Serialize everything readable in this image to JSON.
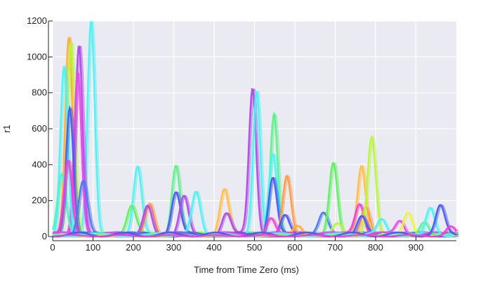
{
  "chart_data": {
    "type": "line",
    "title": "",
    "xlabel": "Time from Time Zero (ms)",
    "ylabel": "r1",
    "xlim": [
      0,
      1000
    ],
    "ylim": [
      0,
      1200
    ],
    "xticks": [
      0,
      100,
      200,
      300,
      400,
      500,
      600,
      700,
      800,
      900
    ],
    "yticks": [
      0,
      200,
      400,
      600,
      800,
      1000,
      1200
    ],
    "grid": true,
    "background": "#eaeaf2",
    "grid_color": "#ffffff",
    "baseline_noise": 25,
    "peaks": [
      {
        "x": 95,
        "y": 1200,
        "color": "#4ff2f2"
      },
      {
        "x": 40,
        "y": 1100,
        "color": "#ffae3a"
      },
      {
        "x": 45,
        "y": 1080,
        "color": "#b9f542"
      },
      {
        "x": 65,
        "y": 1060,
        "color": "#b04ae8"
      },
      {
        "x": 62,
        "y": 900,
        "color": "#e84ae8"
      },
      {
        "x": 28,
        "y": 940,
        "color": "#4ff2f2"
      },
      {
        "x": 22,
        "y": 330,
        "color": "#4ff2c8"
      },
      {
        "x": 42,
        "y": 710,
        "color": "#4a5af2"
      },
      {
        "x": 38,
        "y": 420,
        "color": "#f23fd6"
      },
      {
        "x": 75,
        "y": 300,
        "color": "#4a7af2"
      },
      {
        "x": 210,
        "y": 370,
        "color": "#4ff2f2"
      },
      {
        "x": 195,
        "y": 150,
        "color": "#5ef25e"
      },
      {
        "x": 240,
        "y": 180,
        "color": "#ff9a4a"
      },
      {
        "x": 235,
        "y": 170,
        "color": "#b04ae8"
      },
      {
        "x": 305,
        "y": 390,
        "color": "#5ef28a"
      },
      {
        "x": 305,
        "y": 240,
        "color": "#4a5af2"
      },
      {
        "x": 325,
        "y": 220,
        "color": "#b04ae8"
      },
      {
        "x": 355,
        "y": 240,
        "color": "#4ff2f2"
      },
      {
        "x": 425,
        "y": 260,
        "color": "#ffbe4a"
      },
      {
        "x": 430,
        "y": 120,
        "color": "#b04ae8"
      },
      {
        "x": 495,
        "y": 810,
        "color": "#b04ae8"
      },
      {
        "x": 505,
        "y": 810,
        "color": "#4ff2f2"
      },
      {
        "x": 548,
        "y": 670,
        "color": "#5ef28a"
      },
      {
        "x": 545,
        "y": 450,
        "color": "#4ff2f2"
      },
      {
        "x": 545,
        "y": 320,
        "color": "#4a5af2"
      },
      {
        "x": 580,
        "y": 330,
        "color": "#ff9a4a"
      },
      {
        "x": 575,
        "y": 110,
        "color": "#4a5af2"
      },
      {
        "x": 540,
        "y": 100,
        "color": "#f23fd6"
      },
      {
        "x": 605,
        "y": 60,
        "color": "#ffae3a"
      },
      {
        "x": 670,
        "y": 110,
        "color": "#4a7af2"
      },
      {
        "x": 695,
        "y": 400,
        "color": "#5ef25e"
      },
      {
        "x": 705,
        "y": 60,
        "color": "#b9f542"
      },
      {
        "x": 765,
        "y": 390,
        "color": "#ffbe4a"
      },
      {
        "x": 760,
        "y": 170,
        "color": "#f23fd6"
      },
      {
        "x": 775,
        "y": 160,
        "color": "#ff9a4a"
      },
      {
        "x": 790,
        "y": 550,
        "color": "#b9f542"
      },
      {
        "x": 765,
        "y": 100,
        "color": "#4a5af2"
      },
      {
        "x": 815,
        "y": 80,
        "color": "#4ff2f2"
      },
      {
        "x": 860,
        "y": 80,
        "color": "#e84ae8"
      },
      {
        "x": 880,
        "y": 130,
        "color": "#eef24a"
      },
      {
        "x": 920,
        "y": 80,
        "color": "#5ef28a"
      },
      {
        "x": 935,
        "y": 160,
        "color": "#4ff2f2"
      },
      {
        "x": 960,
        "y": 155,
        "color": "#4a5af2"
      },
      {
        "x": 985,
        "y": 50,
        "color": "#f23fd6"
      }
    ]
  }
}
